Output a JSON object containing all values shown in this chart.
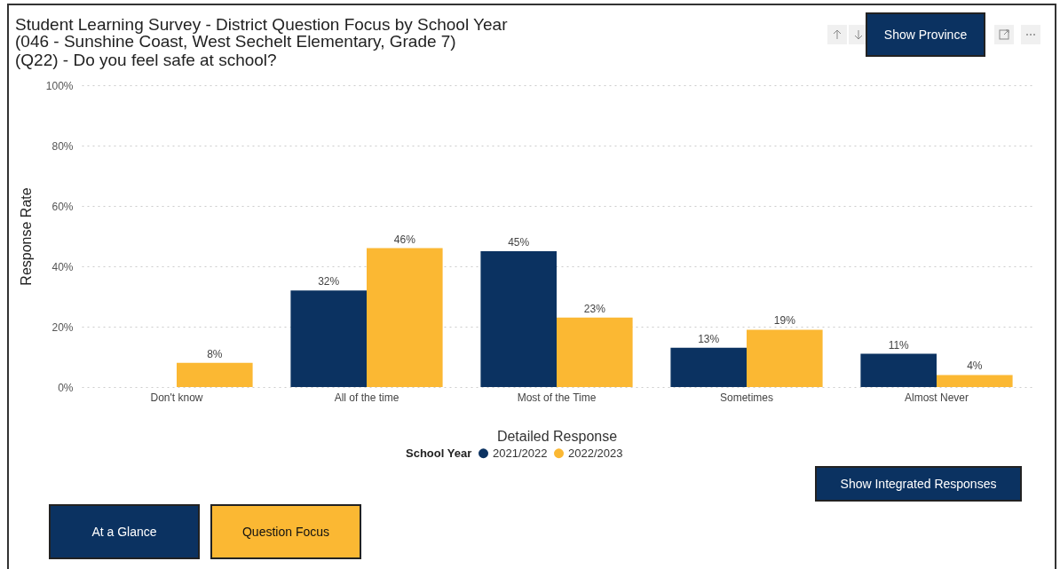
{
  "chart_data": {
    "type": "bar",
    "title": "Student Learning Survey - District Question Focus by School Year",
    "subtitle": " (046 - Sunshine Coast, West Sechelt Elementary, Grade 7)\n(Q22) - Do you feel safe at school?",
    "xlabel": "Detailed Response",
    "ylabel": "Response Rate",
    "legend_title": "School Year",
    "categories": [
      "Don't know",
      "All of the time",
      "Most of the Time",
      "Sometimes",
      "Almost Never"
    ],
    "series": [
      {
        "name": "2021/2022",
        "color": "#0b3261",
        "values": [
          null,
          32,
          45,
          13,
          11
        ],
        "value_labels": [
          null,
          "32%",
          "45%",
          "13%",
          "11%"
        ]
      },
      {
        "name": "2022/2023",
        "color": "#fbb833",
        "values": [
          8,
          46,
          23,
          19,
          4
        ],
        "value_labels": [
          "8%",
          "46%",
          "23%",
          "19%",
          "4%"
        ]
      }
    ],
    "ylim": [
      0,
      100
    ],
    "yticks": [
      {
        "value": 0,
        "label": "0%"
      },
      {
        "value": 20,
        "label": "20%"
      },
      {
        "value": 40,
        "label": "40%"
      },
      {
        "value": 60,
        "label": "60%"
      },
      {
        "value": 80,
        "label": "80%"
      },
      {
        "value": 100,
        "label": "100%"
      }
    ],
    "grid": "y",
    "legend": "bottom",
    "annotations": [
      "Show Province",
      "Show Integrated Responses",
      "At a Glance",
      "Question Focus"
    ]
  }
}
